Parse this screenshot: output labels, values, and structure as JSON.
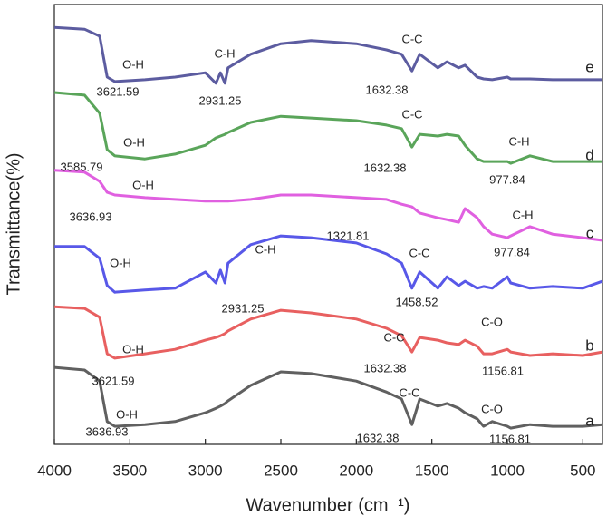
{
  "chart_data": {
    "type": "line",
    "x_label": "Wavenumber (cm⁻¹)",
    "y_label": "Transmittance(%)",
    "xlim": [
      4000,
      370
    ],
    "ylim": [
      0,
      100
    ],
    "xticks": [
      4000,
      3500,
      3000,
      2500,
      2000,
      1500,
      1000,
      500
    ],
    "x": [
      4000,
      3800,
      3700,
      3650,
      3600,
      3400,
      3200,
      3000,
      2930,
      2900,
      2870,
      2850,
      2700,
      2500,
      2300,
      2000,
      1800,
      1700,
      1632,
      1580,
      1460,
      1400,
      1322,
      1280,
      1200,
      1157,
      1100,
      1000,
      978,
      850,
      700,
      500,
      370
    ],
    "series": [
      {
        "name": "e",
        "color": "#5c5ca0",
        "values": [
          94.8,
          94.4,
          92.8,
          83.5,
          82.5,
          82.9,
          83.5,
          84.5,
          82.1,
          84.5,
          82.1,
          85.6,
          88.7,
          91.1,
          91.8,
          91.1,
          89.7,
          88.7,
          84.9,
          88.7,
          85.6,
          87.0,
          85.6,
          86.2,
          83.5,
          83.1,
          82.9,
          83.5,
          83.1,
          83.1,
          82.9,
          82.9,
          82.9
        ]
      },
      {
        "name": "d",
        "color": "#5aa55a",
        "values": [
          80.0,
          79.4,
          75.3,
          67.0,
          65.6,
          64.9,
          66.0,
          68.0,
          69.7,
          70.1,
          70.5,
          70.9,
          73.2,
          74.6,
          74.2,
          73.6,
          72.6,
          71.8,
          67.6,
          70.5,
          70.1,
          70.5,
          70.1,
          68.0,
          64.9,
          64.3,
          64.3,
          64.3,
          63.9,
          65.6,
          64.3,
          64.3,
          64.3
        ]
      },
      {
        "name": "c",
        "color": "#e060e0",
        "values": [
          62.3,
          61.9,
          59.8,
          57.3,
          56.7,
          56.1,
          55.7,
          55.3,
          55.3,
          55.3,
          55.3,
          55.3,
          55.7,
          56.7,
          56.7,
          56.1,
          55.7,
          54.6,
          54.0,
          52.6,
          51.5,
          51.1,
          50.5,
          53.6,
          51.5,
          49.5,
          47.8,
          47.0,
          47.4,
          49.5,
          47.8,
          47.0,
          46.4
        ]
      },
      {
        "color": "#5858e8",
        "values": [
          45.0,
          45.0,
          42.3,
          36.1,
          34.6,
          35.1,
          35.5,
          39.2,
          36.7,
          39.6,
          36.7,
          41.2,
          45.4,
          47.4,
          47.0,
          45.8,
          43.3,
          41.2,
          35.5,
          39.2,
          35.5,
          38.1,
          36.1,
          37.1,
          35.5,
          35.9,
          35.5,
          38.1,
          36.7,
          35.5,
          35.9,
          35.5,
          37.1
        ]
      },
      {
        "name": "b",
        "color": "#e86060",
        "values": [
          31.3,
          30.9,
          28.9,
          20.6,
          19.6,
          20.6,
          21.6,
          23.7,
          24.3,
          24.7,
          25.2,
          25.8,
          28.5,
          30.5,
          29.9,
          28.5,
          26.4,
          24.7,
          21.0,
          24.3,
          23.7,
          23.1,
          22.7,
          23.7,
          22.3,
          20.6,
          20.6,
          21.6,
          21.0,
          20.2,
          20.6,
          20.2,
          21.0
        ]
      },
      {
        "name": "a",
        "color": "#606060",
        "values": [
          17.5,
          16.9,
          14.4,
          5.2,
          4.1,
          4.5,
          5.2,
          7.2,
          8.2,
          8.7,
          9.3,
          9.9,
          13.4,
          16.5,
          16.1,
          14.4,
          11.9,
          10.3,
          4.5,
          10.3,
          8.7,
          9.3,
          8.2,
          7.2,
          5.8,
          4.1,
          5.2,
          4.1,
          3.7,
          4.5,
          4.1,
          4.1,
          4.5
        ]
      }
    ],
    "annotations": [
      "O-H",
      "3621.59",
      "C-H",
      "2931.25",
      "C-C",
      "1632.38",
      "3585.79",
      "O-H",
      "C-C",
      "1632.38",
      "C-H",
      "977.84",
      "O-H",
      "3636.93",
      "1321.81",
      "C-H",
      "977.84",
      "O-H",
      "C-H",
      "2931.25",
      "C-C",
      "1458.52",
      "O-H",
      "3621.59",
      "C-C",
      "1632.38",
      "C-O",
      "1156.81",
      "O-H",
      "3636.93",
      "C-C",
      "1632.38",
      "C-O",
      "1156.81"
    ]
  }
}
